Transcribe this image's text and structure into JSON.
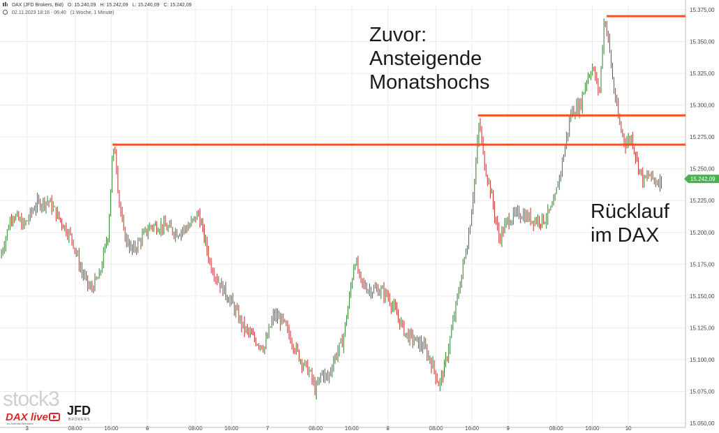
{
  "header": {
    "symbol": "DAX (JFD Brokers, Bid)",
    "open": "O: 15.240,09",
    "high": "H: 15.242,09",
    "low": "L: 15.240,09",
    "close": "C: 15.242,09",
    "date_range": "02.11.2023 18:16 - 06:40",
    "period": "(1 Woche, 1 Minute)"
  },
  "annotations": {
    "top": [
      "Zuvor:",
      "Ansteigende",
      "Monatshochs"
    ],
    "bottom": [
      "Rücklauf",
      "im DAX"
    ]
  },
  "logos": {
    "stock3": "stock3",
    "dax_live": "DAX live",
    "dax_live_sub": "by Andreas Bernstein",
    "jfd": "JFD",
    "jfd_sub": "BROKERS"
  },
  "colors": {
    "up": "#2e7d32",
    "down": "#c62828",
    "resistance": "#f4511e",
    "last_price": "#4caf50",
    "grid": "#ececec"
  },
  "chart_data": {
    "type": "line",
    "xlabel": "",
    "ylabel": "",
    "ylim": [
      15050,
      15375
    ],
    "yticks": [
      "15.375,00",
      "15.350,00",
      "15.325,00",
      "15.300,00",
      "15.275,00",
      "15.250,00",
      "15.225,00",
      "15.200,00",
      "15.175,00",
      "15.150,00",
      "15.125,00",
      "15.100,00",
      "15.075,00",
      "15.050,00"
    ],
    "last_price_label": "15.242,09",
    "last_price": 15242.09,
    "x_labels": [
      "3",
      "08:00",
      "16:00",
      "6",
      "08:00",
      "16:00",
      "7",
      "08:00",
      "16:00",
      "8",
      "08:00",
      "16:00",
      "9",
      "08:00",
      "16:00",
      "10"
    ],
    "x_label_pos": [
      1.0,
      1.8,
      2.4,
      3.0,
      3.8,
      4.4,
      5.0,
      5.8,
      6.4,
      7.0,
      7.8,
      8.4,
      9.0,
      9.8,
      10.4,
      11.0
    ],
    "xlim": [
      0.55,
      11.95
    ],
    "series": [
      {
        "values_t": [
          0.55,
          0.75,
          0.95,
          1.15,
          1.35,
          1.55,
          1.75,
          1.9,
          2.05,
          2.2,
          2.35,
          2.42,
          2.47,
          2.52,
          2.6,
          2.75,
          2.9,
          3.05,
          3.25,
          3.5,
          3.7,
          3.85,
          3.95,
          4.05,
          4.2,
          4.4,
          4.6,
          4.8,
          4.95,
          5.1,
          5.25,
          5.4,
          5.55,
          5.7,
          5.8,
          5.9,
          6.0,
          6.1,
          6.25,
          6.35,
          6.45,
          6.55,
          6.7,
          6.85,
          7.0,
          7.15,
          7.3,
          7.45,
          7.6,
          7.75,
          7.85,
          7.95,
          8.05,
          8.2,
          8.35,
          8.45,
          8.52,
          8.6,
          8.7,
          8.85,
          9.0,
          9.2,
          9.4,
          9.6,
          9.75,
          9.9,
          10.05,
          10.2,
          10.3,
          10.4,
          10.52,
          10.6,
          10.67,
          10.75,
          10.85,
          10.95,
          11.05,
          11.15,
          11.25,
          11.35,
          11.45,
          11.55
        ],
        "values": [
          15180,
          15215,
          15205,
          15222,
          15225,
          15210,
          15195,
          15170,
          15155,
          15165,
          15200,
          15260,
          15265,
          15230,
          15200,
          15185,
          15195,
          15205,
          15205,
          15200,
          15205,
          15215,
          15195,
          15175,
          15160,
          15145,
          15125,
          15115,
          15110,
          15135,
          15130,
          15115,
          15100,
          15090,
          15075,
          15090,
          15085,
          15100,
          15115,
          15145,
          15180,
          15160,
          15155,
          15155,
          15150,
          15135,
          15120,
          15115,
          15110,
          15095,
          15080,
          15095,
          15120,
          15160,
          15200,
          15245,
          15288,
          15255,
          15235,
          15195,
          15210,
          15215,
          15210,
          15210,
          15220,
          15255,
          15295,
          15300,
          15320,
          15330,
          15310,
          15370,
          15350,
          15315,
          15285,
          15270,
          15275,
          15255,
          15240,
          15245,
          15240,
          15242
        ]
      }
    ],
    "resistance_levels": [
      {
        "value": 15269,
        "from_t": 2.42,
        "to_t": 11.95
      },
      {
        "value": 15292,
        "from_t": 8.5,
        "to_t": 11.95
      },
      {
        "value": 15370,
        "from_t": 10.64,
        "to_t": 11.95
      }
    ],
    "grid": true,
    "scale": "linear"
  }
}
